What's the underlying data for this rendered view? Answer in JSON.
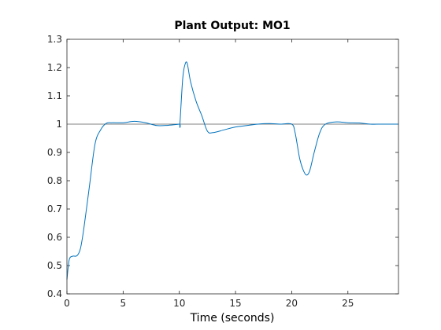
{
  "chart_data": {
    "type": "line",
    "title": "Plant Output:  MO1",
    "xlabel": "Time (seconds)",
    "ylabel": "",
    "xlim": [
      0,
      29.5
    ],
    "ylim": [
      0.4,
      1.3
    ],
    "x_ticks": [
      0,
      5,
      10,
      15,
      20,
      25
    ],
    "x_tick_labels": [
      "0",
      "5",
      "10",
      "15",
      "20",
      "25"
    ],
    "y_ticks": [
      0.4,
      0.5,
      0.6,
      0.7,
      0.8,
      0.9,
      1.0,
      1.1,
      1.2,
      1.3
    ],
    "y_tick_labels": [
      "0.4",
      "0.5",
      "0.6",
      "0.7",
      "0.8",
      "0.9",
      "1",
      "1.1",
      "1.2",
      "1.3"
    ],
    "grid": false,
    "reference_line": {
      "y": 1.0,
      "color": "#808080"
    },
    "series": [
      {
        "color": "#0072bd",
        "x": [
          0,
          0.2,
          0.5,
          0.9,
          1.2,
          1.5,
          2.0,
          2.5,
          3.0,
          3.5,
          4.0,
          5.0,
          6.0,
          7.0,
          8.0,
          9.0,
          10.0,
          10.05,
          10.3,
          10.5,
          10.7,
          11.0,
          11.5,
          12.0,
          12.5,
          13.0,
          14.0,
          15.0,
          16.0,
          17.0,
          18.0,
          19.0,
          20.0,
          20.3,
          20.7,
          21.0,
          21.3,
          21.6,
          22.0,
          22.5,
          23.0,
          24.0,
          25.0,
          26.0,
          27.0,
          28.0,
          29.5
        ],
        "y": [
          0.45,
          0.52,
          0.533,
          0.535,
          0.56,
          0.63,
          0.78,
          0.93,
          0.98,
          1.003,
          1.005,
          1.005,
          1.01,
          1.005,
          0.995,
          0.996,
          1.0,
          1.0,
          1.16,
          1.21,
          1.215,
          1.15,
          1.08,
          1.03,
          0.975,
          0.97,
          0.98,
          0.99,
          0.995,
          1.0,
          1.002,
          1.0,
          1.0,
          0.97,
          0.88,
          0.84,
          0.82,
          0.835,
          0.9,
          0.97,
          1.0,
          1.008,
          1.005,
          1.004,
          1.0,
          1.0,
          1.0
        ]
      }
    ]
  }
}
